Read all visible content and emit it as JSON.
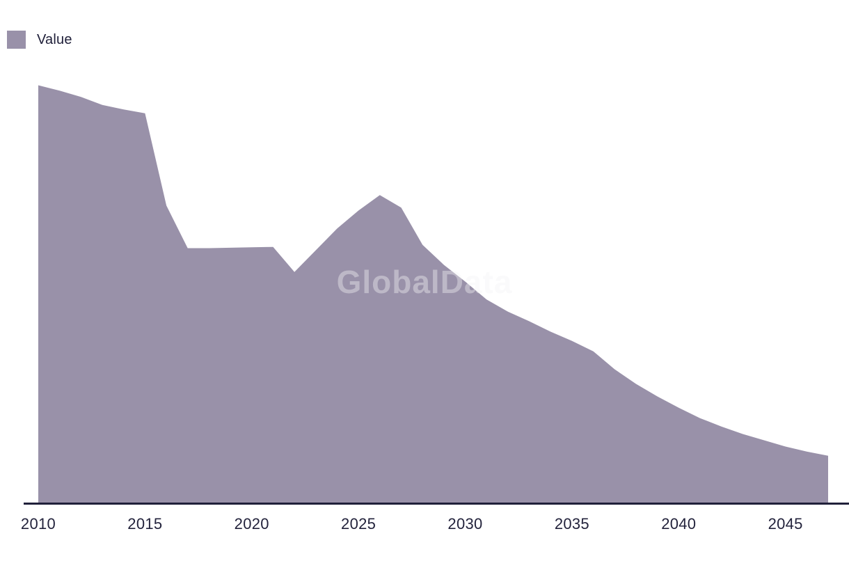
{
  "page": {
    "background_color": "#ffffff"
  },
  "legend": {
    "position": "top-left",
    "items": [
      {
        "label": "Value",
        "swatch_color": "#9991a9"
      }
    ]
  },
  "watermark": {
    "text": "GlobalData"
  },
  "chart_data": {
    "type": "area",
    "title": "",
    "xlabel": "",
    "ylabel": "",
    "grid": false,
    "y_axis_visible": false,
    "legend_position": "top-left",
    "area_color": "#9991a9",
    "axis_line_color": "#20203a",
    "x_tick_labels": [
      "2010",
      "2015",
      "2020",
      "2025",
      "2030",
      "2035",
      "2040",
      "2045"
    ],
    "x_range": [
      2010,
      2047
    ],
    "ylim": [
      0,
      105
    ],
    "value_scale": "relative index, 2010 = 100 (no y-axis labels shown)",
    "series": [
      {
        "name": "Value",
        "x": [
          2010,
          2011,
          2012,
          2013,
          2014,
          2015,
          2016,
          2017,
          2018,
          2019,
          2020,
          2021,
          2022,
          2023,
          2024,
          2025,
          2026,
          2027,
          2028,
          2029,
          2030,
          2031,
          2032,
          2033,
          2034,
          2035,
          2036,
          2037,
          2038,
          2039,
          2040,
          2041,
          2042,
          2043,
          2044,
          2045,
          2046,
          2047
        ],
        "values": [
          100.0,
          98.7,
          97.2,
          95.3,
          94.2,
          93.3,
          71.2,
          61.0,
          61.0,
          61.1,
          61.2,
          61.3,
          55.3,
          60.5,
          65.7,
          70.0,
          73.7,
          70.7,
          61.8,
          57.0,
          53.0,
          48.7,
          45.8,
          43.5,
          41.0,
          38.8,
          36.3,
          32.0,
          28.5,
          25.5,
          22.8,
          20.3,
          18.3,
          16.5,
          15.0,
          13.5,
          12.3,
          11.3
        ]
      }
    ]
  }
}
